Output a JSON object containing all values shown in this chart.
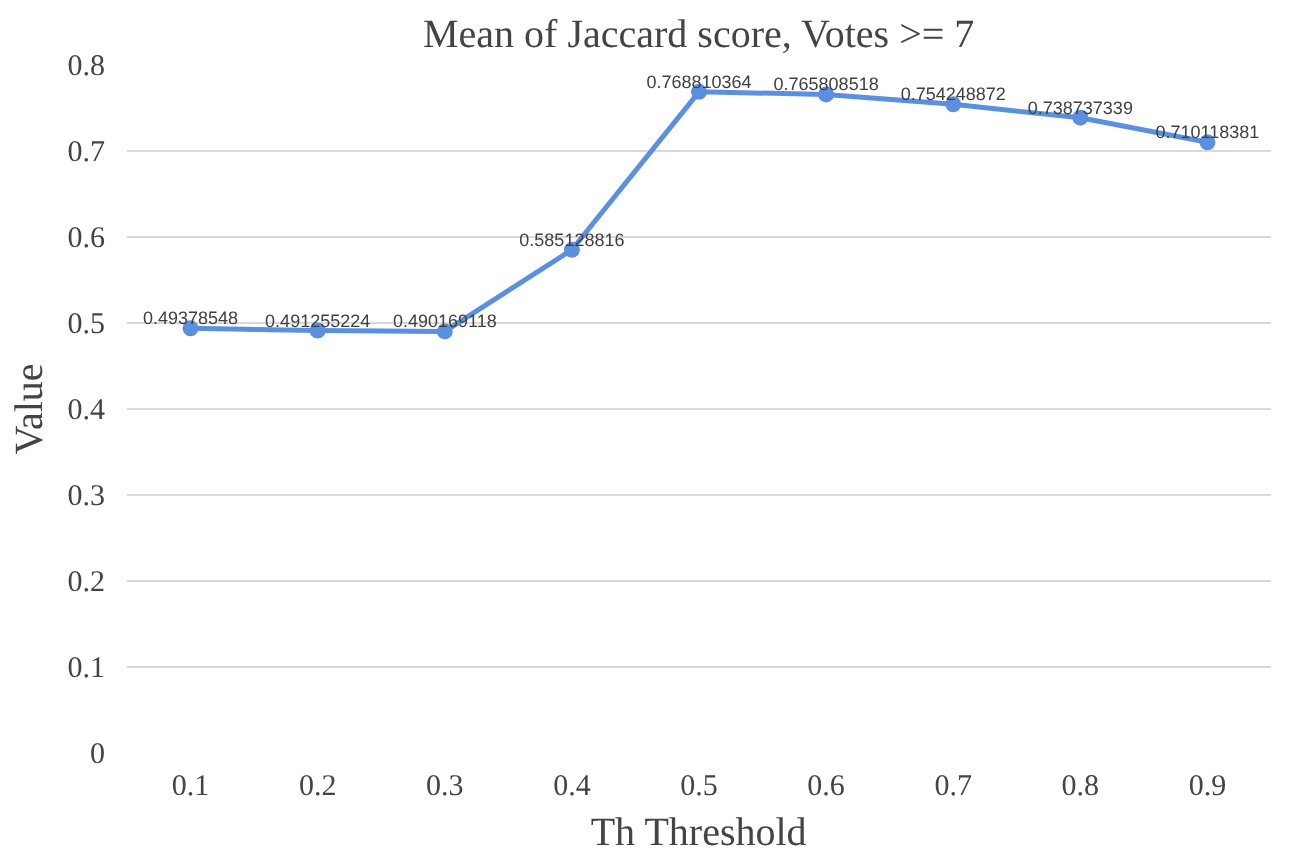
{
  "chart_data": {
    "type": "line",
    "title": "Mean of Jaccard score, Votes >= 7",
    "xlabel": "Th Threshold",
    "ylabel": "Value",
    "categories": [
      "0.1",
      "0.2",
      "0.3",
      "0.4",
      "0.5",
      "0.6",
      "0.7",
      "0.8",
      "0.9"
    ],
    "series": [
      {
        "color": "#5b8fe0",
        "values": [
          0.49378548,
          0.491255224,
          0.490169118,
          0.585128816,
          0.768810364,
          0.765808518,
          0.754248872,
          0.738737339,
          0.710118381
        ]
      }
    ],
    "ylim": [
      0,
      0.8
    ],
    "yticks": [
      0,
      0.1,
      0.2,
      0.3,
      0.4,
      0.5,
      0.6,
      0.7,
      0.8
    ],
    "grid": "y",
    "marker": "circle",
    "data_labels": true
  }
}
